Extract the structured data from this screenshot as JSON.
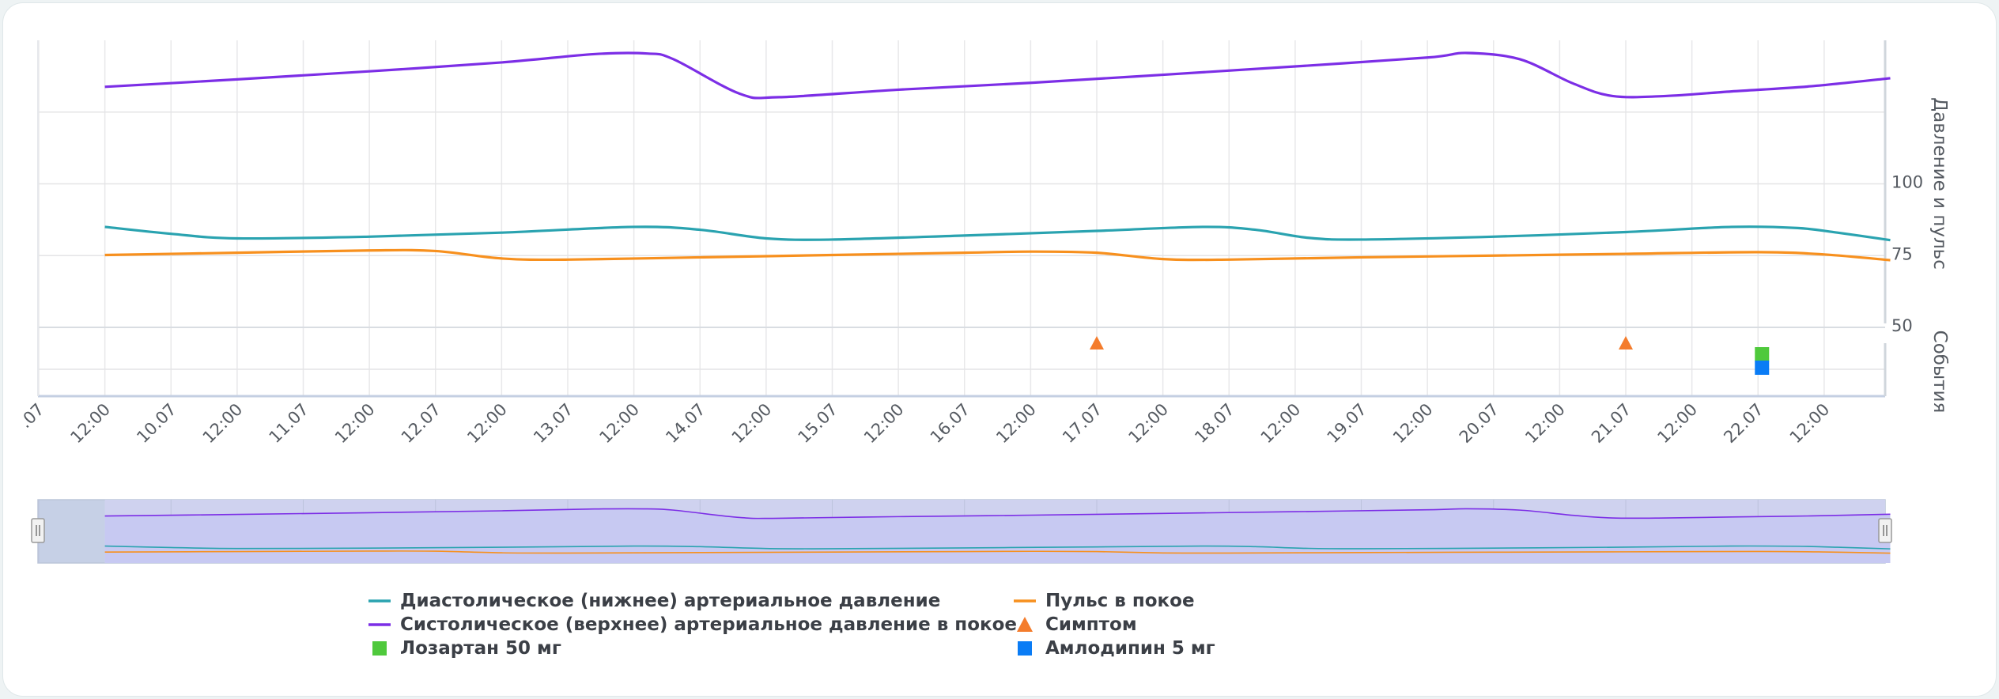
{
  "chart_data": {
    "type": "line",
    "title": "",
    "x_ticks": [
      ".07",
      "12:00",
      "10.07",
      "12:00",
      "11.07",
      "12:00",
      "12.07",
      "12:00",
      "13.07",
      "12:00",
      "14.07",
      "12:00",
      "15.07",
      "12:00",
      "16.07",
      "12:00",
      "17.07",
      "12:00",
      "18.07",
      "12:00",
      "19.07",
      "12:00",
      "20.07",
      "12:00",
      "21.07",
      "12:00",
      "22.07",
      "12:00"
    ],
    "y_right_ticks": [
      "100",
      "75",
      "50"
    ],
    "y_right_title": "Давление и пульс",
    "events_title": "События",
    "ylim": [
      50,
      150
    ],
    "series": [
      {
        "name": "Систолическое (верхнее) артериальное давление в покое",
        "color": "#7c2ee6",
        "points": [
          [
            9.5,
            133.8
          ],
          [
            10.5,
            136.4
          ],
          [
            11.5,
            139.2
          ],
          [
            12.5,
            142.3
          ],
          [
            13.2,
            145.2
          ],
          [
            13.6,
            145.4
          ],
          [
            13.8,
            143.4
          ],
          [
            14.3,
            131.4
          ],
          [
            14.6,
            130.2
          ],
          [
            15.5,
            132.8
          ],
          [
            16.5,
            135.2
          ],
          [
            17.5,
            138.0
          ],
          [
            18.5,
            140.9
          ],
          [
            19.5,
            144.0
          ],
          [
            19.8,
            145.6
          ],
          [
            20.2,
            143.4
          ],
          [
            20.6,
            135.0
          ],
          [
            20.9,
            130.6
          ],
          [
            21.3,
            130.6
          ],
          [
            21.8,
            132.2
          ],
          [
            22.4,
            134.0
          ],
          [
            23.0,
            136.8
          ]
        ]
      },
      {
        "name": "Диастолическое (нижнее) артериальное давление",
        "color": "#2aa3b0",
        "points": [
          [
            9.5,
            85.0
          ],
          [
            10.0,
            82.6
          ],
          [
            10.5,
            81.0
          ],
          [
            11.5,
            81.6
          ],
          [
            12.5,
            83.0
          ],
          [
            13.5,
            85.0
          ],
          [
            14.0,
            84.0
          ],
          [
            14.5,
            81.0
          ],
          [
            15.0,
            80.6
          ],
          [
            16.0,
            82.0
          ],
          [
            17.0,
            83.6
          ],
          [
            17.8,
            85.0
          ],
          [
            18.2,
            84.0
          ],
          [
            18.6,
            81.2
          ],
          [
            19.0,
            80.6
          ],
          [
            20.0,
            81.6
          ],
          [
            21.0,
            83.2
          ],
          [
            21.8,
            85.0
          ],
          [
            22.3,
            84.6
          ],
          [
            22.6,
            83.0
          ],
          [
            23.0,
            80.4
          ]
        ]
      },
      {
        "name": "Пульс в покое",
        "color": "#f7901e",
        "points": [
          [
            9.5,
            75.2
          ],
          [
            10.5,
            76.0
          ],
          [
            11.5,
            76.8
          ],
          [
            12.0,
            76.6
          ],
          [
            12.5,
            74.0
          ],
          [
            13.0,
            73.6
          ],
          [
            14.0,
            74.4
          ],
          [
            15.0,
            75.2
          ],
          [
            16.0,
            76.0
          ],
          [
            16.5,
            76.4
          ],
          [
            17.0,
            76.0
          ],
          [
            17.5,
            73.8
          ],
          [
            18.0,
            73.6
          ],
          [
            19.0,
            74.4
          ],
          [
            20.0,
            75.0
          ],
          [
            21.0,
            75.6
          ],
          [
            22.0,
            76.2
          ],
          [
            22.5,
            75.4
          ],
          [
            23.0,
            73.4
          ]
        ]
      }
    ],
    "events": [
      {
        "name": "Симптом",
        "type": "symptom",
        "x": [
          17.0,
          21.0
        ]
      },
      {
        "name": "Лозартан 50 мг",
        "type": "losartan",
        "x": [
          22.03
        ]
      },
      {
        "name": "Амлодипин 5 мг",
        "type": "amlodipine",
        "x": [
          22.03
        ]
      }
    ],
    "legend": {
      "placement": "bottom",
      "items": [
        {
          "label": "Диастолическое (нижнее) артериальное давление",
          "marker": "line",
          "color": "#2aa3b0"
        },
        {
          "label": "Пульс в покое",
          "marker": "line",
          "color": "#f7901e"
        },
        {
          "label": "Систолическое (верхнее) артериальное давление в покое",
          "marker": "line",
          "color": "#7c2ee6"
        },
        {
          "label": "Симптом",
          "marker": "triangle",
          "color": "#f47c2c"
        },
        {
          "label": "Лозартан 50 мг",
          "marker": "square",
          "color": "#4fc93c"
        },
        {
          "label": "Амлодипин 5 мг",
          "marker": "square",
          "color": "#0a7cf5"
        }
      ]
    },
    "grid": true,
    "navigator": true
  }
}
